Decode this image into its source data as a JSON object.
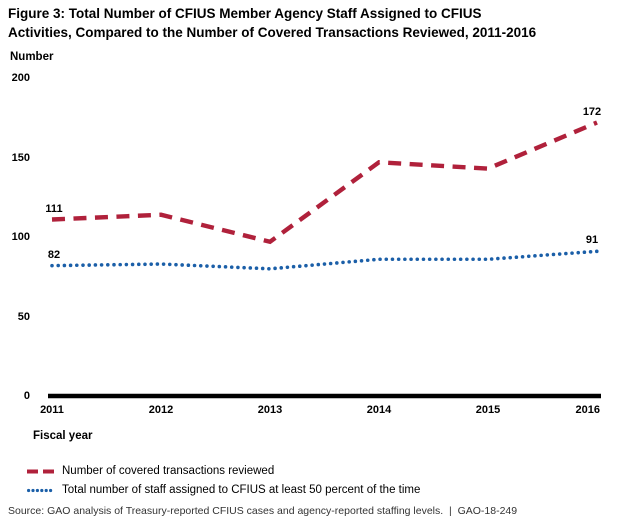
{
  "figure": {
    "title_lines": [
      "Figure 3: Total Number of CFIUS Member Agency Staff Assigned to CFIUS",
      "Activities, Compared to the Number of Covered Transactions Reviewed, 2011-2016"
    ],
    "source": "Source: GAO analysis of Treasury-reported CFIUS cases and agency-reported staffing levels.  |  GAO-18-249"
  },
  "chart_data": {
    "type": "line",
    "title": "Figure 3: Total Number of CFIUS Member Agency Staff Assigned to CFIUS Activities, Compared to the Number of Covered Transactions Reviewed, 2011-2016",
    "xlabel": "Fiscal year",
    "ylabel": "Number",
    "categories": [
      "2011",
      "2012",
      "2013",
      "2014",
      "2015",
      "2016"
    ],
    "ylim": [
      0,
      200
    ],
    "yticks": [
      0,
      50,
      100,
      150,
      200
    ],
    "grid": false,
    "legend_position": "bottom-left",
    "axis_color": "#000000",
    "series": [
      {
        "name": "Number of covered transactions reviewed",
        "line_style": "dashed",
        "color": "#B0213B",
        "values": [
          111,
          114,
          97,
          147,
          143,
          172
        ],
        "point_labels": [
          {
            "index": 0,
            "text": "111"
          },
          {
            "index": 5,
            "text": "172"
          }
        ]
      },
      {
        "name": "Total number of staff assigned to CFIUS at least 50 percent of the time",
        "line_style": "dotted",
        "color": "#1B5FA8",
        "values": [
          82,
          83,
          80,
          86,
          86,
          91
        ],
        "point_labels": [
          {
            "index": 0,
            "text": "82"
          },
          {
            "index": 5,
            "text": "91"
          }
        ]
      }
    ]
  }
}
